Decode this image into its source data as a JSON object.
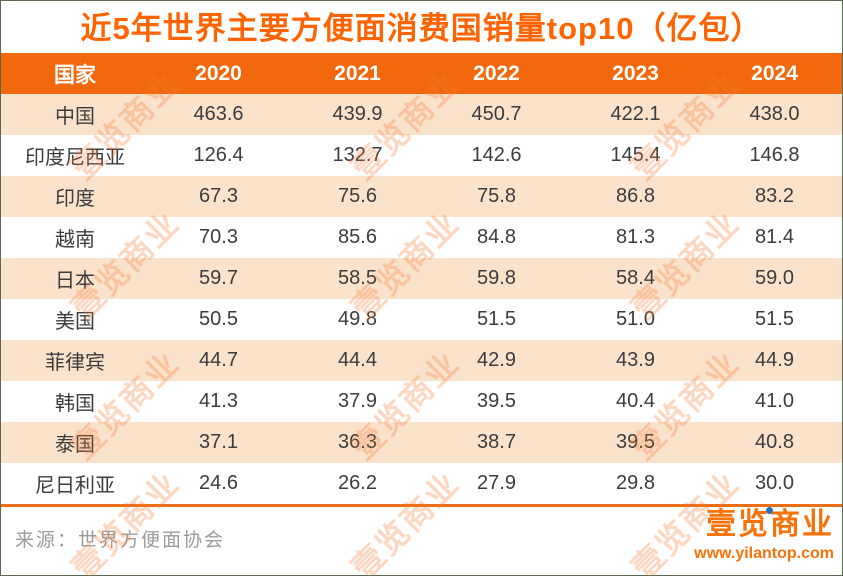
{
  "title": "近5年世界主要方便面消费国销量top10（亿包）",
  "table": {
    "headers": [
      "国家",
      "2020",
      "2021",
      "2022",
      "2023",
      "2024"
    ],
    "rows": [
      {
        "country": "中国",
        "values": [
          "463.6",
          "439.9",
          "450.7",
          "422.1",
          "438.0"
        ]
      },
      {
        "country": "印度尼西亚",
        "values": [
          "126.4",
          "132.7",
          "142.6",
          "145.4",
          "146.8"
        ]
      },
      {
        "country": "印度",
        "values": [
          "67.3",
          "75.6",
          "75.8",
          "86.8",
          "83.2"
        ]
      },
      {
        "country": "越南",
        "values": [
          "70.3",
          "85.6",
          "84.8",
          "81.3",
          "81.4"
        ]
      },
      {
        "country": "日本",
        "values": [
          "59.7",
          "58.5",
          "59.8",
          "58.4",
          "59.0"
        ]
      },
      {
        "country": "美国",
        "values": [
          "50.5",
          "49.8",
          "51.5",
          "51.0",
          "51.5"
        ]
      },
      {
        "country": "菲律宾",
        "values": [
          "44.7",
          "44.4",
          "42.9",
          "43.9",
          "44.9"
        ]
      },
      {
        "country": "韩国",
        "values": [
          "41.3",
          "37.9",
          "39.5",
          "40.4",
          "41.0"
        ]
      },
      {
        "country": "泰国",
        "values": [
          "37.1",
          "36.3",
          "38.7",
          "39.5",
          "40.8"
        ]
      },
      {
        "country": "尼日利亚",
        "values": [
          "24.6",
          "26.2",
          "27.9",
          "29.8",
          "30.0"
        ]
      }
    ]
  },
  "footer": {
    "source": "来源：世界方便面协会"
  },
  "logo": {
    "name": "壹览商业",
    "url": "www.yilantop.com"
  },
  "watermark": {
    "text": "壹览商业"
  },
  "colors": {
    "title_orange": "#ff6400",
    "header_bg": "#f2680d",
    "row_peach": "#fbe2ca",
    "row_white": "#ffffff",
    "divider_orange": "#ea6d17",
    "logo_orange": "#f87209",
    "logo_dot_blue": "#2e6fb7",
    "source_gray": "#9b9b9b",
    "body_text": "#3c3c3c"
  },
  "chart_data": {
    "type": "table",
    "title": "近5年世界主要方便面消费国销量top10（亿包）",
    "unit": "亿包",
    "categories": [
      "2020",
      "2021",
      "2022",
      "2023",
      "2024"
    ],
    "series": [
      {
        "name": "中国",
        "values": [
          463.6,
          439.9,
          450.7,
          422.1,
          438.0
        ]
      },
      {
        "name": "印度尼西亚",
        "values": [
          126.4,
          132.7,
          142.6,
          145.4,
          146.8
        ]
      },
      {
        "name": "印度",
        "values": [
          67.3,
          75.6,
          75.8,
          86.8,
          83.2
        ]
      },
      {
        "name": "越南",
        "values": [
          70.3,
          85.6,
          84.8,
          81.3,
          81.4
        ]
      },
      {
        "name": "日本",
        "values": [
          59.7,
          58.5,
          59.8,
          58.4,
          59.0
        ]
      },
      {
        "name": "美国",
        "values": [
          50.5,
          49.8,
          51.5,
          51.0,
          51.5
        ]
      },
      {
        "name": "菲律宾",
        "values": [
          44.7,
          44.4,
          42.9,
          43.9,
          44.9
        ]
      },
      {
        "name": "韩国",
        "values": [
          41.3,
          37.9,
          39.5,
          40.4,
          41.0
        ]
      },
      {
        "name": "泰国",
        "values": [
          37.1,
          36.3,
          38.7,
          39.5,
          40.8
        ]
      },
      {
        "name": "尼日利亚",
        "values": [
          24.6,
          26.2,
          27.9,
          29.8,
          30.0
        ]
      }
    ],
    "source": "世界方便面协会"
  }
}
